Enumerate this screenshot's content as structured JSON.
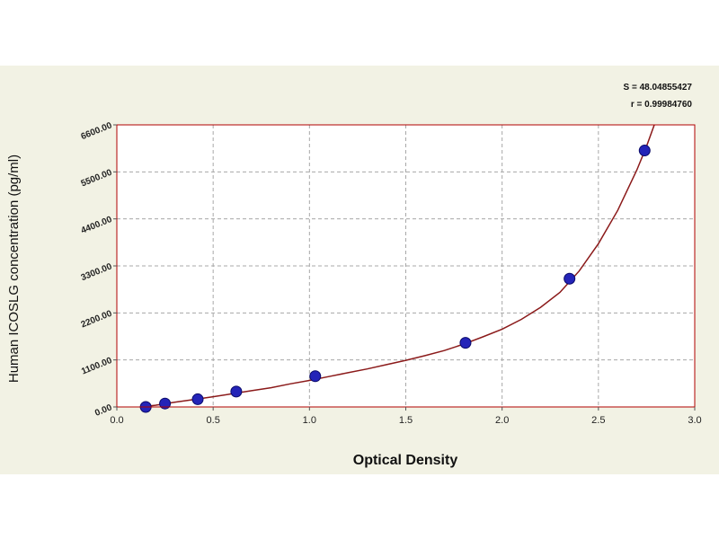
{
  "chart_data": {
    "type": "scatter",
    "title": "",
    "xlabel": "Optical Density",
    "ylabel": "Human ICOSLG concentration (pg/ml)",
    "xlim": [
      0.0,
      3.0
    ],
    "ylim": [
      0,
      6600
    ],
    "x_ticks": [
      "0.0",
      "0.5",
      "1.0",
      "1.5",
      "2.0",
      "2.5",
      "3.0"
    ],
    "y_ticks": [
      "0.00",
      "1100.00",
      "2200.00",
      "3300.00",
      "4400.00",
      "5500.00",
      "6600.00"
    ],
    "grid": true,
    "annotations": [
      "S = 48.04855427",
      "r = 0.99984760"
    ],
    "series": [
      {
        "points": [
          {
            "x": 0.15,
            "y": 0
          },
          {
            "x": 0.25,
            "y": 80
          },
          {
            "x": 0.42,
            "y": 180
          },
          {
            "x": 0.62,
            "y": 360
          },
          {
            "x": 1.03,
            "y": 720
          },
          {
            "x": 1.81,
            "y": 1500
          },
          {
            "x": 2.35,
            "y": 3000
          },
          {
            "x": 2.74,
            "y": 6000
          }
        ]
      }
    ],
    "fit_curve": [
      [
        0.12,
        -20
      ],
      [
        0.2,
        40
      ],
      [
        0.3,
        110
      ],
      [
        0.4,
        175
      ],
      [
        0.5,
        240
      ],
      [
        0.6,
        310
      ],
      [
        0.7,
        380
      ],
      [
        0.8,
        450
      ],
      [
        0.9,
        540
      ],
      [
        1.0,
        620
      ],
      [
        1.1,
        710
      ],
      [
        1.2,
        800
      ],
      [
        1.3,
        890
      ],
      [
        1.4,
        990
      ],
      [
        1.5,
        1090
      ],
      [
        1.6,
        1200
      ],
      [
        1.7,
        1320
      ],
      [
        1.8,
        1470
      ],
      [
        1.9,
        1640
      ],
      [
        2.0,
        1820
      ],
      [
        2.1,
        2050
      ],
      [
        2.2,
        2330
      ],
      [
        2.3,
        2680
      ],
      [
        2.4,
        3180
      ],
      [
        2.5,
        3820
      ],
      [
        2.6,
        4600
      ],
      [
        2.7,
        5550
      ],
      [
        2.75,
        6100
      ],
      [
        2.79,
        6600
      ]
    ],
    "colors": {
      "background": "#f2f2e4",
      "plot_area": "#ffffff",
      "border": "#b00000",
      "curve": "#8b1a1a",
      "marker_fill": "#2424b8",
      "marker_edge": "#0a0a6a",
      "grid": "#a8a8a8"
    }
  }
}
